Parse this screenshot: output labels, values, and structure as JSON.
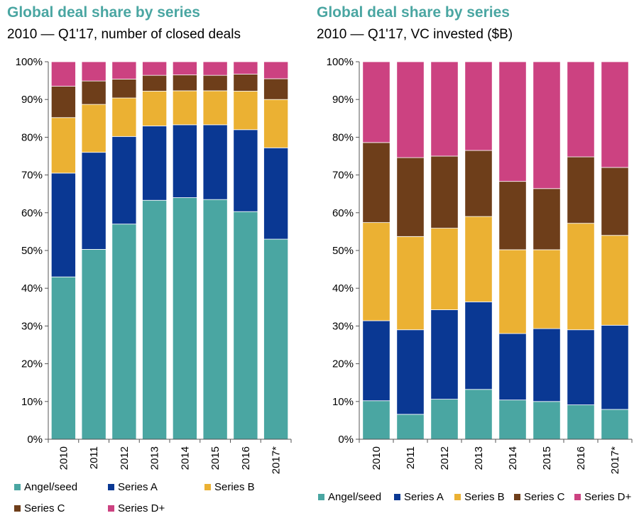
{
  "chart_data": [
    {
      "type": "bar",
      "stacked": true,
      "title": "Global deal share by series",
      "subtitle": "2010 — Q1'17, number of closed deals",
      "categories": [
        "2010",
        "2011",
        "2012",
        "2013",
        "2014",
        "2015",
        "2016",
        "2017*"
      ],
      "ylim": [
        0,
        100
      ],
      "yticks": [
        "0%",
        "10%",
        "20%",
        "30%",
        "40%",
        "50%",
        "60%",
        "70%",
        "80%",
        "90%",
        "100%"
      ],
      "legend_position": "bottom",
      "series": [
        {
          "name": "Angel/seed",
          "color": "#4aa6a2",
          "values": [
            43,
            50.3,
            57,
            63.3,
            64,
            63.5,
            60.3,
            53
          ]
        },
        {
          "name": "Series A",
          "color": "#0a3893",
          "values": [
            27.5,
            25.7,
            23.2,
            19.7,
            19.3,
            19.8,
            21.7,
            24.2
          ]
        },
        {
          "name": "Series B",
          "color": "#ebb133",
          "values": [
            14.7,
            12.7,
            10.2,
            9.2,
            9,
            9,
            10.2,
            12.8
          ]
        },
        {
          "name": "Series C",
          "color": "#6e3e1a",
          "values": [
            8.3,
            6.2,
            5,
            4.2,
            4.2,
            4.1,
            4.5,
            5.5
          ]
        },
        {
          "name": "Series D+",
          "color": "#cc4281",
          "values": [
            6.5,
            5.1,
            4.6,
            3.6,
            3.5,
            3.6,
            3.3,
            4.5
          ]
        }
      ]
    },
    {
      "type": "bar",
      "stacked": true,
      "title": "Global deal share by series",
      "subtitle": "2010 — Q1'17, VC invested ($B)",
      "categories": [
        "2010",
        "2011",
        "2012",
        "2013",
        "2014",
        "2015",
        "2016",
        "2017*"
      ],
      "ylim": [
        0,
        100
      ],
      "yticks": [
        "0%",
        "10%",
        "20%",
        "30%",
        "40%",
        "50%",
        "60%",
        "70%",
        "80%",
        "90%",
        "100%"
      ],
      "legend_position": "bottom",
      "series": [
        {
          "name": "Angel/seed",
          "color": "#4aa6a2",
          "values": [
            10.2,
            6.6,
            10.6,
            13.2,
            10.4,
            10,
            9.1,
            7.9
          ]
        },
        {
          "name": "Series A",
          "color": "#0a3893",
          "values": [
            21.2,
            22.4,
            23.7,
            23.2,
            17.6,
            19.3,
            19.9,
            22.3
          ]
        },
        {
          "name": "Series B",
          "color": "#ebb133",
          "values": [
            26,
            24.7,
            21.6,
            22.6,
            22.2,
            20.9,
            28.2,
            23.8
          ]
        },
        {
          "name": "Series C",
          "color": "#6e3e1a",
          "values": [
            21.2,
            20.9,
            19.1,
            17.5,
            18.1,
            16.2,
            17.6,
            18
          ]
        },
        {
          "name": "Series D+",
          "color": "#cc4281",
          "values": [
            21.4,
            25.4,
            25,
            23.5,
            31.7,
            33.6,
            25.2,
            28
          ]
        }
      ]
    }
  ]
}
